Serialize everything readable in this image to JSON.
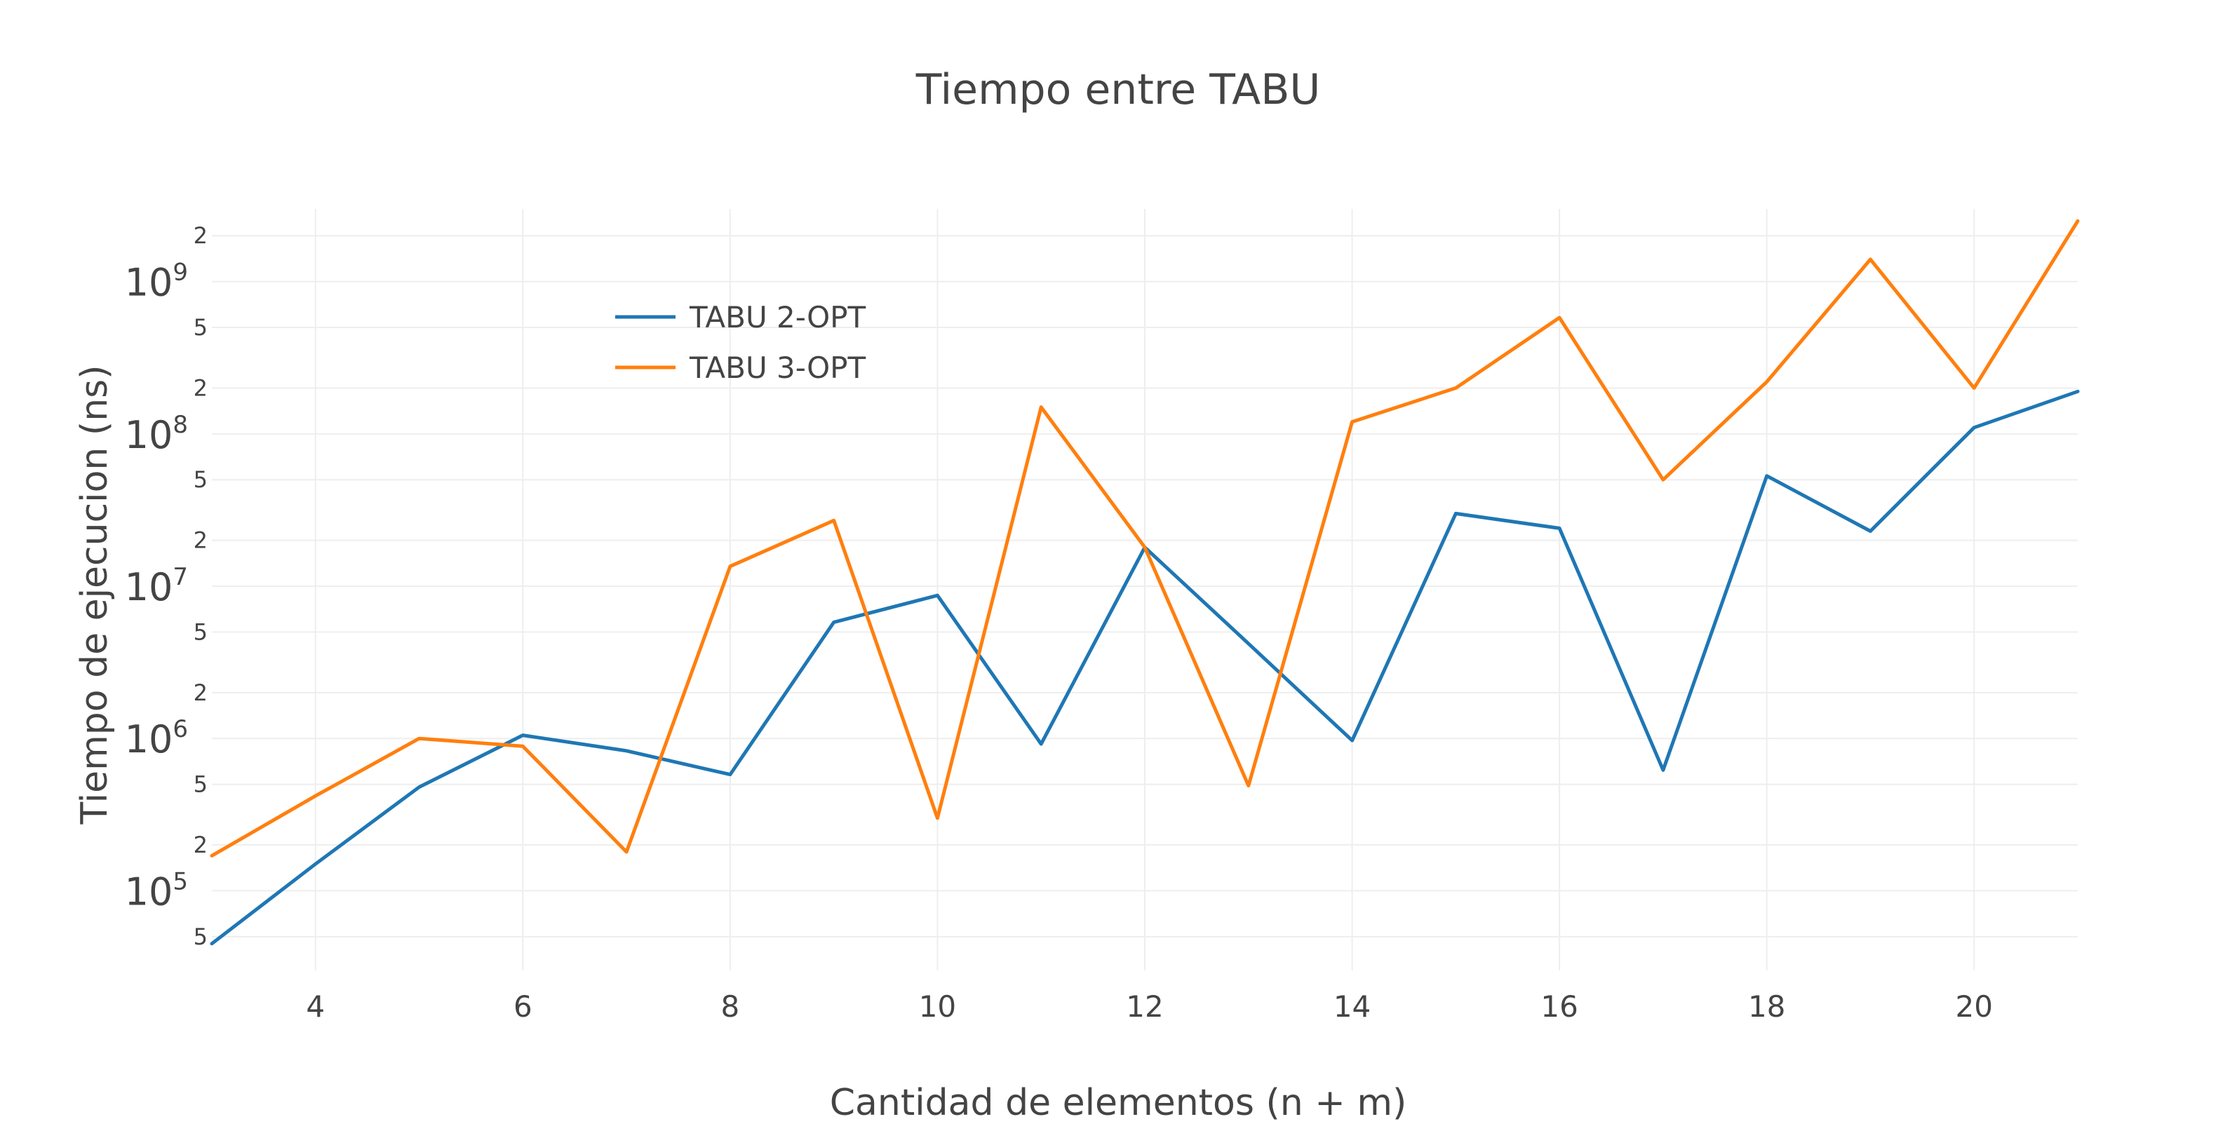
{
  "chart_data": {
    "type": "line",
    "title": "Tiempo entre TABU",
    "xlabel": "Cantidad de elementos (n + m)",
    "ylabel": "Tiempo de ejecucion (ns)",
    "x_scale": "linear",
    "y_scale": "log",
    "xlim": [
      3,
      21
    ],
    "ylim": [
      30000,
      3000000000
    ],
    "x_ticks": [
      4,
      6,
      8,
      10,
      12,
      14,
      16,
      18,
      20
    ],
    "y_major_ticks": [
      {
        "value": 100000,
        "base": "10",
        "exp": "5"
      },
      {
        "value": 1000000,
        "base": "10",
        "exp": "6"
      },
      {
        "value": 10000000,
        "base": "10",
        "exp": "7"
      },
      {
        "value": 100000000,
        "base": "10",
        "exp": "8"
      },
      {
        "value": 1000000000,
        "base": "10",
        "exp": "9"
      }
    ],
    "y_minor_ticks": [
      {
        "value": 50000,
        "label": "5"
      },
      {
        "value": 200000,
        "label": "2"
      },
      {
        "value": 500000,
        "label": "5"
      },
      {
        "value": 2000000,
        "label": "2"
      },
      {
        "value": 5000000,
        "label": "5"
      },
      {
        "value": 20000000,
        "label": "2"
      },
      {
        "value": 50000000,
        "label": "5"
      },
      {
        "value": 200000000,
        "label": "2"
      },
      {
        "value": 500000000,
        "label": "5"
      },
      {
        "value": 2000000000,
        "label": "2"
      }
    ],
    "grid": true,
    "legend_position": "top-left",
    "x": [
      3,
      4,
      5,
      6,
      7,
      8,
      9,
      10,
      11,
      12,
      13,
      14,
      15,
      16,
      17,
      18,
      19,
      20,
      21
    ],
    "series": [
      {
        "name": "TABU 2-OPT",
        "color": "#1f77b4",
        "values": [
          45000,
          150000,
          480000,
          1050000,
          830000,
          580000,
          5800000,
          8700000,
          920000,
          18000000,
          4200000,
          970000,
          30000000,
          24000000,
          620000,
          53000000,
          23000000,
          110000000,
          190000000
        ]
      },
      {
        "name": "TABU 3-OPT",
        "color": "#ff7f0e",
        "values": [
          170000,
          420000,
          1000000,
          890000,
          180000,
          13500000,
          27000000,
          300000,
          150000000,
          18000000,
          490000,
          120000000,
          200000000,
          580000000,
          50000000,
          220000000,
          1400000000,
          200000000,
          2500000000
        ]
      }
    ]
  }
}
